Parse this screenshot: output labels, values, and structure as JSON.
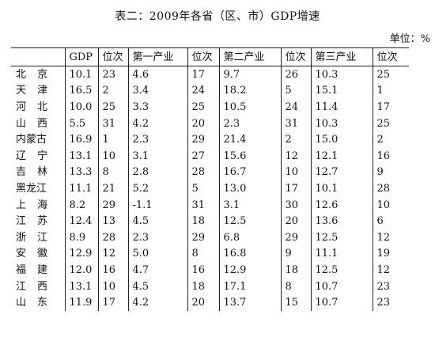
{
  "title": "表二：2009年各省（区、市）GDP增速",
  "unit": "单位：%",
  "headers": [
    "",
    "GDP",
    "位次",
    "第一产业",
    "位次",
    "第二产业",
    "位次",
    "第三产业",
    "位次"
  ],
  "rows": [
    {
      "province": "北京",
      "gdp": "10.1",
      "gdp_rank": "23",
      "primary": "4.6",
      "primary_rank": "17",
      "secondary": "9.7",
      "secondary_rank": "26",
      "tertiary": "10.3",
      "tertiary_rank": "25"
    },
    {
      "province": "天津",
      "gdp": "16.5",
      "gdp_rank": "2",
      "primary": "3.4",
      "primary_rank": "24",
      "secondary": "18.2",
      "secondary_rank": "5",
      "tertiary": "15.1",
      "tertiary_rank": "1"
    },
    {
      "province": "河北",
      "gdp": "10.0",
      "gdp_rank": "25",
      "primary": "3.3",
      "primary_rank": "25",
      "secondary": "10.5",
      "secondary_rank": "24",
      "tertiary": "11.4",
      "tertiary_rank": "17"
    },
    {
      "province": "山西",
      "gdp": "5.5",
      "gdp_rank": "31",
      "primary": "4.2",
      "primary_rank": "20",
      "secondary": "2.3",
      "secondary_rank": "31",
      "tertiary": "10.3",
      "tertiary_rank": "25"
    },
    {
      "province": "内蒙古",
      "gdp": "16.9",
      "gdp_rank": "1",
      "primary": "2.3",
      "primary_rank": "29",
      "secondary": "21.4",
      "secondary_rank": "2",
      "tertiary": "15.0",
      "tertiary_rank": "2"
    },
    {
      "province": "辽宁",
      "gdp": "13.1",
      "gdp_rank": "10",
      "primary": "3.1",
      "primary_rank": "27",
      "secondary": "15.6",
      "secondary_rank": "12",
      "tertiary": "12.1",
      "tertiary_rank": "16"
    },
    {
      "province": "吉林",
      "gdp": "13.3",
      "gdp_rank": "8",
      "primary": "2.8",
      "primary_rank": "28",
      "secondary": "16.7",
      "secondary_rank": "10",
      "tertiary": "12.7",
      "tertiary_rank": "9"
    },
    {
      "province": "黑龙江",
      "gdp": "11.1",
      "gdp_rank": "21",
      "primary": "5.2",
      "primary_rank": "5",
      "secondary": "13.0",
      "secondary_rank": "17",
      "tertiary": "10.1",
      "tertiary_rank": "28"
    },
    {
      "province": "上海",
      "gdp": "8.2",
      "gdp_rank": "29",
      "primary": "-1.1",
      "primary_rank": "31",
      "secondary": "3.1",
      "secondary_rank": "30",
      "tertiary": "12.6",
      "tertiary_rank": "10"
    },
    {
      "province": "江苏",
      "gdp": "12.4",
      "gdp_rank": "13",
      "primary": "4.5",
      "primary_rank": "18",
      "secondary": "12.5",
      "secondary_rank": "20",
      "tertiary": "13.6",
      "tertiary_rank": "6"
    },
    {
      "province": "浙江",
      "gdp": "8.9",
      "gdp_rank": "28",
      "primary": "2.3",
      "primary_rank": "29",
      "secondary": "6.8",
      "secondary_rank": "29",
      "tertiary": "12.5",
      "tertiary_rank": "12"
    },
    {
      "province": "安徽",
      "gdp": "12.9",
      "gdp_rank": "12",
      "primary": "5.0",
      "primary_rank": "8",
      "secondary": "16.8",
      "secondary_rank": "9",
      "tertiary": "11.1",
      "tertiary_rank": "19"
    },
    {
      "province": "福建",
      "gdp": "12.0",
      "gdp_rank": "16",
      "primary": "4.7",
      "primary_rank": "16",
      "secondary": "12.9",
      "secondary_rank": "18",
      "tertiary": "12.5",
      "tertiary_rank": "12"
    },
    {
      "province": "江西",
      "gdp": "13.1",
      "gdp_rank": "10",
      "primary": "4.5",
      "primary_rank": "18",
      "secondary": "17.1",
      "secondary_rank": "8",
      "tertiary": "10.7",
      "tertiary_rank": "23"
    },
    {
      "province": "山东",
      "gdp": "11.9",
      "gdp_rank": "17",
      "primary": "4.2",
      "primary_rank": "20",
      "secondary": "13.7",
      "secondary_rank": "15",
      "tertiary": "10.7",
      "tertiary_rank": "23"
    }
  ]
}
